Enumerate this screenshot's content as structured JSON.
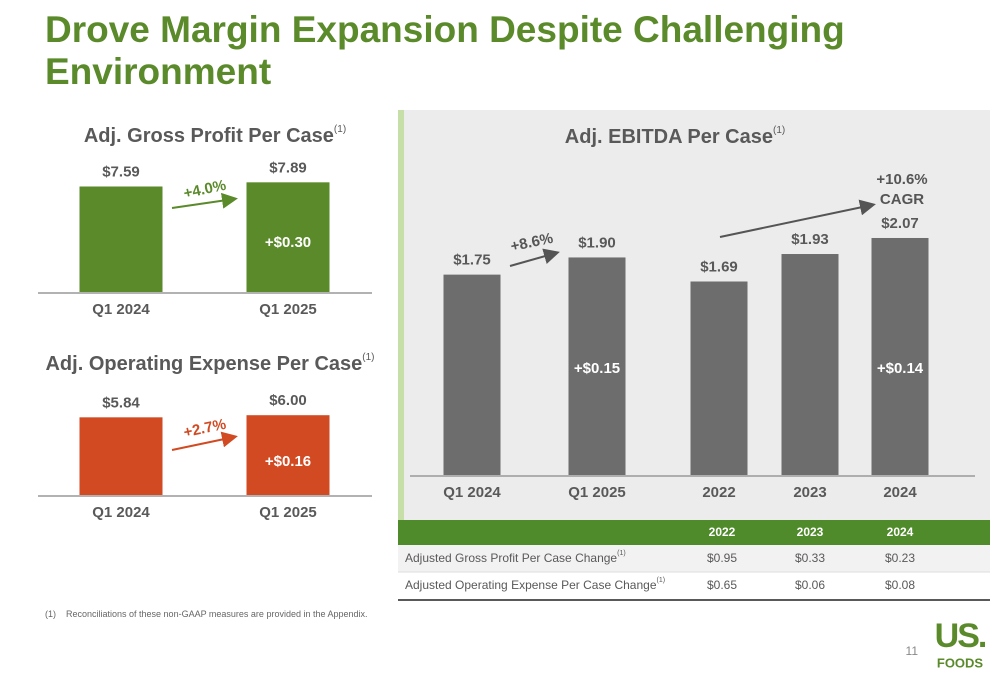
{
  "title": [
    "Drove Margin Expansion Despite Challenging",
    "Environment"
  ],
  "chart_data": [
    {
      "type": "bar",
      "title": "Adj. Gross Profit Per Case",
      "title_marker": "(1)",
      "categories": [
        "Q1 2024",
        "Q1 2025"
      ],
      "values": [
        7.59,
        7.89
      ],
      "value_labels": [
        "$7.59",
        "$7.89"
      ],
      "color": "#5a8a2a",
      "annotations": [
        "+4.0%",
        "+$0.30"
      ]
    },
    {
      "type": "bar",
      "title": "Adj. Operating Expense Per Case",
      "title_marker": "(1)",
      "categories": [
        "Q1 2024",
        "Q1 2025"
      ],
      "values": [
        5.84,
        6.0
      ],
      "value_labels": [
        "$5.84",
        "$6.00"
      ],
      "color": "#d14a22",
      "annotations": [
        "+2.7%",
        "+$0.16"
      ]
    },
    {
      "type": "bar",
      "title": "Adj. EBITDA Per Case",
      "title_marker": "(1)",
      "categories": [
        "Q1 2024",
        "Q1 2025",
        "2022",
        "2023",
        "2024"
      ],
      "values": [
        1.75,
        1.9,
        1.69,
        1.93,
        2.07
      ],
      "value_labels": [
        "$1.75",
        "$1.90",
        "$1.69",
        "$1.93",
        "$2.07"
      ],
      "color": "#6d6d6d",
      "annotations": [
        "+8.6%",
        "+$0.15",
        "+10.6%",
        "CAGR",
        "+$0.14"
      ]
    }
  ],
  "table": {
    "columns": [
      "2022",
      "2023",
      "2024"
    ],
    "rows": [
      {
        "label": "Adjusted Gross Profit Per Case Change",
        "marker": "(1)",
        "cells": [
          "$0.95",
          "$0.33",
          "$0.23"
        ]
      },
      {
        "label": "Adjusted Operating Expense Per Case Change",
        "marker": "(1)",
        "cells": [
          "$0.65",
          "$0.06",
          "$0.08"
        ]
      }
    ]
  },
  "footnote": {
    "marker": "(1)",
    "text": "Reconciliations of these non-GAAP measures are provided in the Appendix."
  },
  "page_number": 11,
  "logo": [
    "US.",
    "FOODS"
  ]
}
